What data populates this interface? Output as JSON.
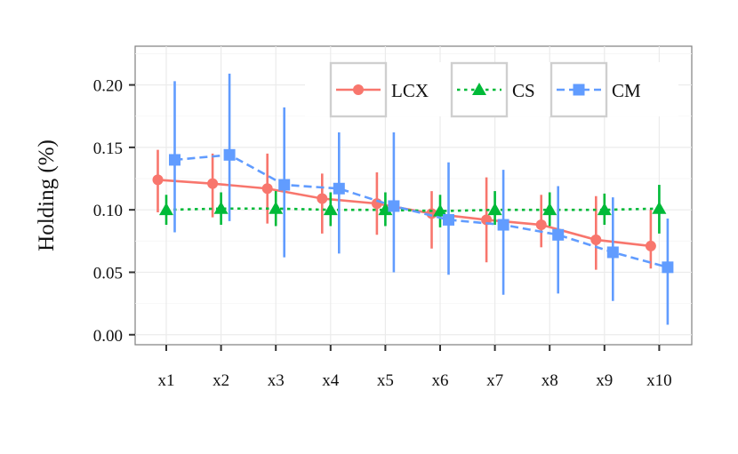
{
  "chart_data": {
    "type": "line",
    "title": "",
    "xlabel": "",
    "ylabel": "Holding (%)",
    "categories": [
      "x1",
      "x2",
      "x3",
      "x4",
      "x5",
      "x6",
      "x7",
      "x8",
      "x9",
      "x10"
    ],
    "ylim": [
      -0.008,
      0.231
    ],
    "yticks": [
      0.0,
      0.05,
      0.1,
      0.15,
      0.2
    ],
    "ytick_labels": [
      "0.00",
      "0.05",
      "0.10",
      "0.15",
      "0.20"
    ],
    "grid": true,
    "legend_position": "top-right",
    "series": [
      {
        "name": "LCX",
        "color": "#F8766D",
        "marker": "circle",
        "line_style": "solid",
        "values": [
          0.124,
          0.121,
          0.117,
          0.109,
          0.105,
          0.097,
          0.092,
          0.088,
          0.076,
          0.071
        ],
        "err_low": [
          0.098,
          0.094,
          0.089,
          0.081,
          0.08,
          0.069,
          0.058,
          0.07,
          0.052,
          0.053
        ],
        "err_high": [
          0.148,
          0.145,
          0.145,
          0.129,
          0.13,
          0.115,
          0.126,
          0.112,
          0.111,
          0.1
        ]
      },
      {
        "name": "CS",
        "color": "#00BA38",
        "marker": "triangle",
        "line_style": "dotted",
        "values": [
          0.1,
          0.101,
          0.101,
          0.1,
          0.1,
          0.099,
          0.1,
          0.1,
          0.1,
          0.101
        ],
        "err_low": [
          0.088,
          0.088,
          0.087,
          0.087,
          0.087,
          0.086,
          0.088,
          0.087,
          0.088,
          0.081
        ],
        "err_high": [
          0.112,
          0.114,
          0.115,
          0.114,
          0.114,
          0.112,
          0.115,
          0.114,
          0.113,
          0.12
        ]
      },
      {
        "name": "CM",
        "color": "#619CFF",
        "marker": "square",
        "line_style": "dashed",
        "values": [
          0.14,
          0.144,
          0.12,
          0.117,
          0.103,
          0.092,
          0.088,
          0.08,
          0.066,
          0.054
        ],
        "err_low": [
          0.082,
          0.091,
          0.062,
          0.065,
          0.05,
          0.048,
          0.032,
          0.033,
          0.027,
          0.008
        ],
        "err_high": [
          0.203,
          0.209,
          0.182,
          0.162,
          0.162,
          0.138,
          0.132,
          0.119,
          0.11,
          0.093
        ]
      }
    ]
  }
}
